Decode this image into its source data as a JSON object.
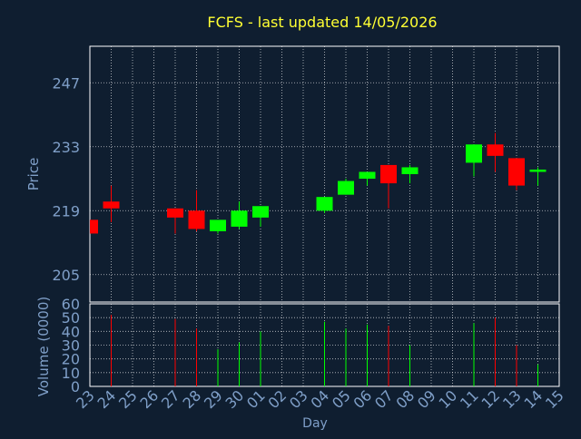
{
  "title": "FCFS - last updated 14/05/2026",
  "colors": {
    "background": "#0f1e30",
    "title": "#ffff33",
    "axis_text": "#7f9fc8",
    "grid": "#ffffff",
    "frame": "#ffffff",
    "up": "#00ff00",
    "down": "#ff0000"
  },
  "chart_data": [
    {
      "type": "candlestick",
      "title": "FCFS - last updated 14/05/2026",
      "ylabel": "Price",
      "ylim": [
        199,
        255
      ],
      "yticks": [
        205,
        219,
        233,
        247
      ],
      "x": [
        "23",
        "24",
        "25",
        "26",
        "27",
        "28",
        "29",
        "30",
        "01",
        "02",
        "03",
        "04",
        "05",
        "06",
        "07",
        "08",
        "09",
        "10",
        "11",
        "12",
        "13",
        "14",
        "15"
      ],
      "grid": true,
      "candles": [
        {
          "x": "23",
          "open": 217,
          "high": 217,
          "low": 214,
          "close": 214
        },
        {
          "x": "24",
          "open": 221,
          "high": 224.5,
          "low": 216.5,
          "close": 219.5
        },
        {
          "x": "27",
          "open": 219.5,
          "high": 219.5,
          "low": 214,
          "close": 217.5
        },
        {
          "x": "28",
          "open": 219,
          "high": 223.5,
          "low": 214.5,
          "close": 215
        },
        {
          "x": "29",
          "open": 214.5,
          "high": 216.5,
          "low": 214,
          "close": 217
        },
        {
          "x": "30",
          "open": 215.5,
          "high": 221,
          "low": 215,
          "close": 219
        },
        {
          "x": "01",
          "open": 217.5,
          "high": 220,
          "low": 215.5,
          "close": 220
        },
        {
          "x": "04",
          "open": 219,
          "high": 222,
          "low": 218.5,
          "close": 222
        },
        {
          "x": "05",
          "open": 222.5,
          "high": 226,
          "low": 222.5,
          "close": 225.5
        },
        {
          "x": "06",
          "open": 226,
          "high": 227.5,
          "low": 224.5,
          "close": 227.5
        },
        {
          "x": "07",
          "open": 229,
          "high": 229,
          "low": 219.5,
          "close": 225
        },
        {
          "x": "08",
          "open": 227,
          "high": 229,
          "low": 225,
          "close": 228.5
        },
        {
          "x": "11",
          "open": 229.5,
          "high": 233.5,
          "low": 226.5,
          "close": 233.5
        },
        {
          "x": "12",
          "open": 233.5,
          "high": 236,
          "low": 227.5,
          "close": 231
        },
        {
          "x": "13",
          "open": 230.5,
          "high": 230.5,
          "low": 223.5,
          "close": 224.5
        },
        {
          "x": "14",
          "open": 227.5,
          "high": 228.5,
          "low": 224.5,
          "close": 228
        }
      ]
    },
    {
      "type": "bar",
      "ylabel": "Volume (0000)",
      "xlabel": "Day",
      "ylim": [
        0,
        60
      ],
      "yticks": [
        0,
        10,
        20,
        30,
        40,
        50,
        60
      ],
      "x": [
        "23",
        "24",
        "25",
        "26",
        "27",
        "28",
        "29",
        "30",
        "01",
        "02",
        "03",
        "04",
        "05",
        "06",
        "07",
        "08",
        "09",
        "10",
        "11",
        "12",
        "13",
        "14",
        "15"
      ],
      "bars": [
        {
          "x": "24",
          "value": 52,
          "direction": "down"
        },
        {
          "x": "27",
          "value": 49,
          "direction": "down"
        },
        {
          "x": "28",
          "value": 42,
          "direction": "down"
        },
        {
          "x": "29",
          "value": 27,
          "direction": "up"
        },
        {
          "x": "30",
          "value": 32,
          "direction": "up"
        },
        {
          "x": "01",
          "value": 40,
          "direction": "up"
        },
        {
          "x": "04",
          "value": 47,
          "direction": "up"
        },
        {
          "x": "05",
          "value": 42,
          "direction": "up"
        },
        {
          "x": "06",
          "value": 45,
          "direction": "up"
        },
        {
          "x": "07",
          "value": 44,
          "direction": "down"
        },
        {
          "x": "08",
          "value": 30,
          "direction": "up"
        },
        {
          "x": "11",
          "value": 46,
          "direction": "up"
        },
        {
          "x": "12",
          "value": 50,
          "direction": "down"
        },
        {
          "x": "13",
          "value": 30,
          "direction": "down"
        },
        {
          "x": "14",
          "value": 16,
          "direction": "up"
        }
      ]
    }
  ]
}
